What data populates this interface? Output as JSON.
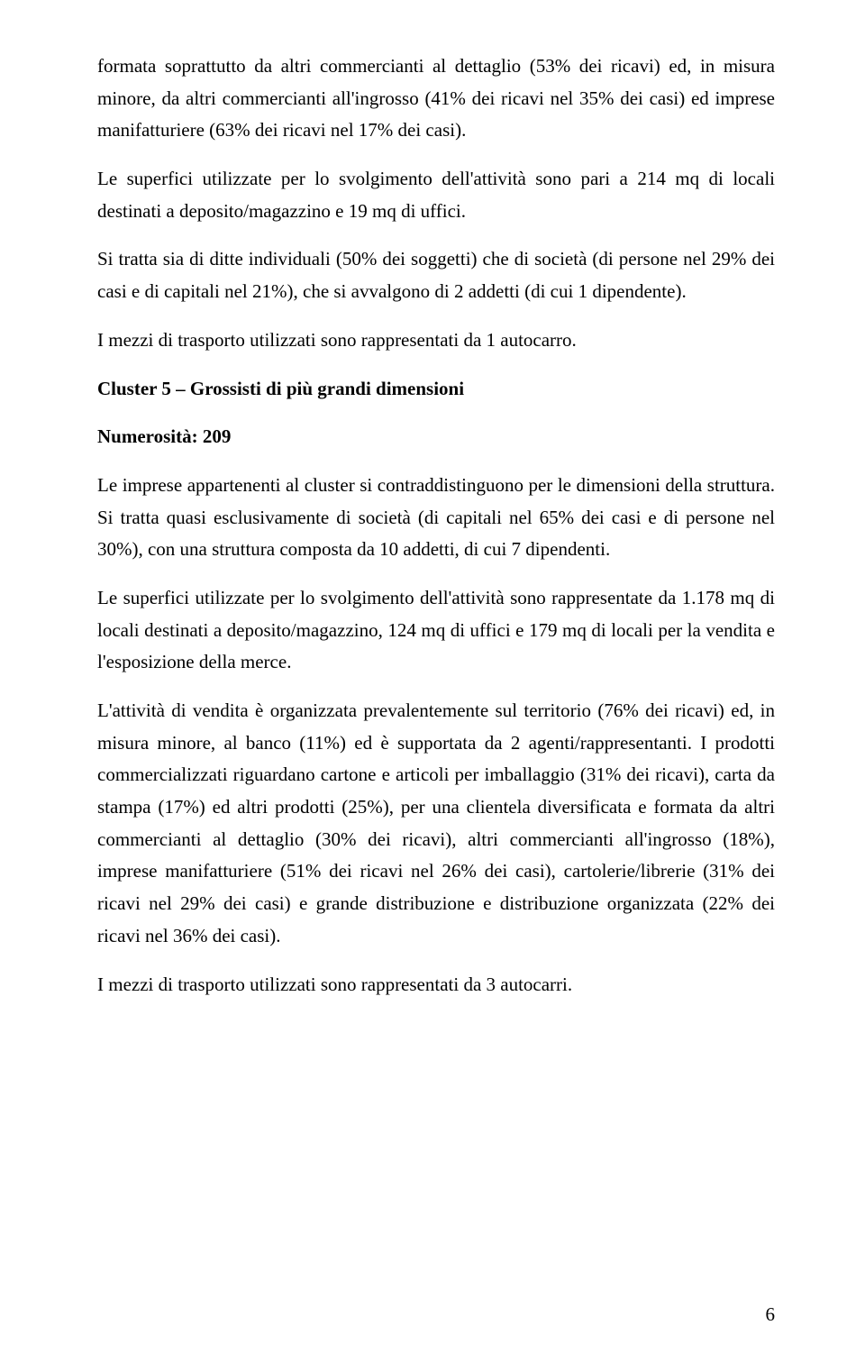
{
  "paragraphs": {
    "p1": "formata soprattutto da altri commercianti al dettaglio (53% dei ricavi) ed, in misura minore, da altri commercianti all'ingrosso (41% dei ricavi nel 35% dei casi) ed imprese manifatturiere (63% dei ricavi nel 17% dei casi).",
    "p2": "Le superfici utilizzate per lo svolgimento dell'attività sono pari a 214 mq di locali destinati a deposito/magazzino e 19 mq di uffici.",
    "p3": "Si tratta sia di ditte individuali (50% dei soggetti) che di società (di persone nel 29% dei casi e di capitali nel 21%), che si avvalgono di 2 addetti (di cui 1 dipendente).",
    "p4": "I mezzi di trasporto utilizzati sono rappresentati da 1 autocarro.",
    "cluster_title": "Cluster 5 – Grossisti di più grandi dimensioni",
    "numerosita": "Numerosità: 209",
    "p5": "Le imprese appartenenti al cluster si contraddistinguono per le dimensioni della struttura. Si tratta quasi esclusivamente di società (di capitali nel 65% dei casi e di persone nel 30%), con una struttura composta da 10 addetti, di cui 7 dipendenti.",
    "p6": "Le superfici utilizzate per lo svolgimento dell'attività sono rappresentate da 1.178 mq di locali destinati a deposito/magazzino, 124 mq di uffici e 179 mq di locali per la vendita e l'esposizione della merce.",
    "p7": "L'attività di vendita è organizzata prevalentemente sul territorio (76% dei ricavi) ed, in misura minore, al banco (11%) ed è supportata da 2 agenti/rappresentanti. I prodotti commercializzati riguardano cartone e articoli per imballaggio (31% dei ricavi), carta da stampa (17%) ed altri prodotti (25%), per una clientela diversificata e formata da altri commercianti al dettaglio (30% dei ricavi), altri commercianti all'ingrosso (18%), imprese manifatturiere (51% dei ricavi nel 26% dei casi), cartolerie/librerie (31% dei ricavi nel 29% dei casi) e grande distribuzione e distribuzione organizzata (22% dei ricavi nel 36% dei casi).",
    "p8": "I mezzi di trasporto utilizzati sono rappresentati da 3 autocarri."
  },
  "page_number": "6"
}
